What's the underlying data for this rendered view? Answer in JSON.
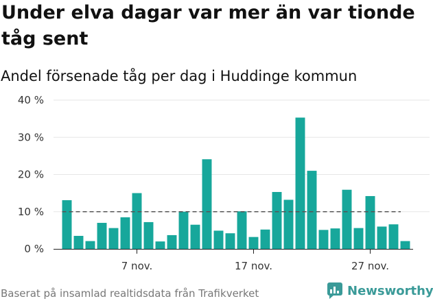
{
  "header": {
    "title": "Under elva dagar var mer än var tionde tåg sent",
    "subtitle": "Andel försenade tåg per dag i Huddinge kommun"
  },
  "footer": {
    "source": "Baserat på insamlad realtidsdata från Trafikverket",
    "brand": "Newsworthy"
  },
  "colors": {
    "bar": "#17a79b",
    "reference_line": "#555555",
    "grid": "#e6e6e6",
    "brand": "#3a9a98"
  },
  "chart_data": {
    "type": "bar",
    "x": [
      1,
      2,
      3,
      4,
      5,
      6,
      7,
      8,
      9,
      10,
      11,
      12,
      13,
      14,
      15,
      16,
      17,
      18,
      19,
      20,
      21,
      22,
      23,
      24,
      25,
      26,
      27,
      28,
      29,
      30
    ],
    "values": [
      13.1,
      3.5,
      2.1,
      7.0,
      5.6,
      8.5,
      15.0,
      7.2,
      2.0,
      3.7,
      10.0,
      6.5,
      24.1,
      4.9,
      4.2,
      10.1,
      3.2,
      5.2,
      15.3,
      13.2,
      35.3,
      21.0,
      5.1,
      5.5,
      15.9,
      5.6,
      14.2,
      6.0,
      6.6,
      2.1
    ],
    "x_tick_labels": [
      {
        "x": 7,
        "label": "7 nov."
      },
      {
        "x": 17,
        "label": "17 nov."
      },
      {
        "x": 27,
        "label": "27 nov."
      }
    ],
    "y_ticks": [
      {
        "value": 0,
        "label": "0 %"
      },
      {
        "value": 10,
        "label": "10 %"
      },
      {
        "value": 20,
        "label": "20 %"
      },
      {
        "value": 30,
        "label": "30 %"
      },
      {
        "value": 40,
        "label": "40 %"
      }
    ],
    "ylim": [
      0,
      40
    ],
    "xlim": [
      0.5,
      30.5
    ],
    "reference_line": 10,
    "grid": true,
    "xlabel": "",
    "ylabel": ""
  }
}
